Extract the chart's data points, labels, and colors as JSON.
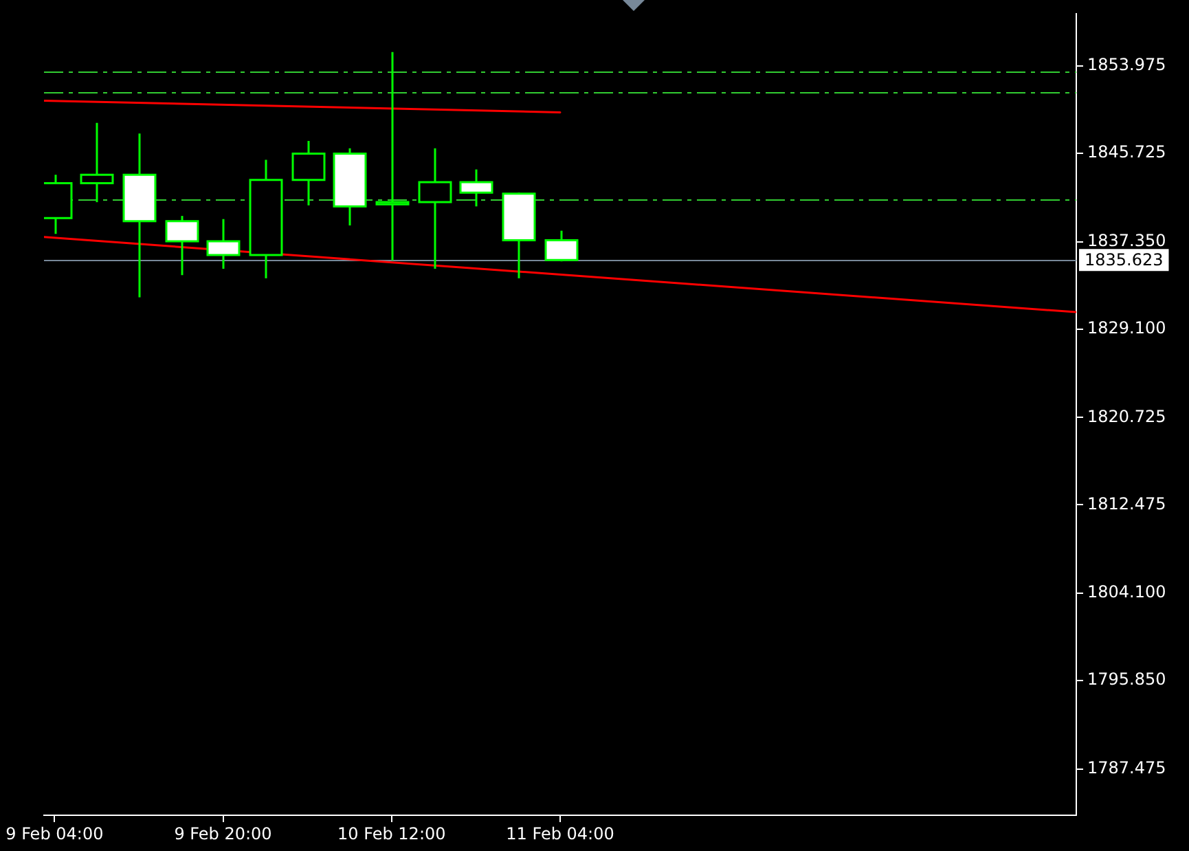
{
  "chart_data": {
    "type": "candlestick",
    "x": [
      "--02-09T04:00",
      "--02-09T08:00",
      "--02-09T12:00",
      "--02-09T16:00",
      "--02-09T20:00",
      "--02-10T00:00",
      "--02-10T04:00",
      "--02-10T08:00",
      "--02-10T12:00",
      "--02-10T16:00",
      "--02-10T20:00",
      "--02-11T00:00",
      "--02-11T04:00"
    ],
    "ohlc": [
      [
        1839.6,
        1843.7,
        1838.1,
        1842.9
      ],
      [
        1842.9,
        1848.6,
        1841.1,
        1843.7
      ],
      [
        1843.7,
        1847.6,
        1832.1,
        1839.3
      ],
      [
        1839.3,
        1839.8,
        1834.2,
        1837.4
      ],
      [
        1837.4,
        1839.5,
        1834.8,
        1836.1
      ],
      [
        1836.1,
        1845.1,
        1833.9,
        1843.2
      ],
      [
        1843.2,
        1846.9,
        1840.8,
        1845.7
      ],
      [
        1845.7,
        1846.2,
        1838.9,
        1840.7
      ],
      [
        1840.9,
        1855.3,
        1835.6,
        1841.1
      ],
      [
        1841.1,
        1846.2,
        1834.8,
        1843.0
      ],
      [
        1843.0,
        1844.2,
        1840.7,
        1842.0
      ],
      [
        1841.9,
        1842.0,
        1833.9,
        1837.5
      ],
      [
        1837.5,
        1838.4,
        1835.5,
        1835.623
      ]
    ],
    "color": "#00ff00",
    "colors": [
      "#000000",
      "#000000",
      "#ffffff",
      "#ffffff",
      "#ffffff",
      "#000000",
      "#000000",
      "#ffffff",
      "#000000",
      "#000000",
      "#ffffff",
      "#ffffff",
      "#ffffff"
    ],
    "series": [
      {
        "type": "line",
        "color": "#ff0000",
        "x": [
          "--02-09T03:00",
          "--02-11T04:00"
        ],
        "values": [
          1850.7,
          1849.6
        ]
      },
      {
        "type": "line",
        "color": "#ff0000",
        "x": [
          "--02-09T03:00",
          "--02-13T05:00"
        ],
        "values": [
          1837.8,
          1830.7
        ]
      }
    ],
    "marker": "none",
    "xlim": [
      "--02-09T03:00",
      "--02-13T05:00"
    ],
    "xticks": [
      {
        "value": "--02-09T04:00",
        "label": "9 Feb 04:00"
      },
      {
        "value": "--02-09T20:00",
        "label": "9 Feb 20:00"
      },
      {
        "value": "--02-10T12:00",
        "label": "10 Feb 12:00"
      },
      {
        "value": "--02-11T04:00",
        "label": "11 Feb 04:00"
      }
    ],
    "ylim": [
      1783.1,
      1858.9
    ],
    "yticks": [
      1787.475,
      {
        "value": 1795.85,
        "label": "1795.850"
      },
      {
        "value": 1804.1,
        "label": "1804.100"
      },
      1812.475,
      1820.725,
      {
        "value": 1829.1,
        "label": "1829.100"
      },
      {
        "value": 1837.35,
        "label": "1837.350"
      },
      1845.725,
      1853.975
    ],
    "ref_lines": [
      {
        "axis": "y",
        "value": 1853.5,
        "color": "#32cd32",
        "line_style": "dashed"
      },
      {
        "axis": "y",
        "value": 1851.5,
        "color": "#32cd32",
        "line_style": "dashed"
      },
      {
        "axis": "y",
        "value": 1841.4,
        "color": "#32cd32",
        "line_style": "dashed"
      },
      {
        "axis": "y",
        "value": 1835.623,
        "label": "1835.623",
        "color": "#778899"
      }
    ]
  }
}
